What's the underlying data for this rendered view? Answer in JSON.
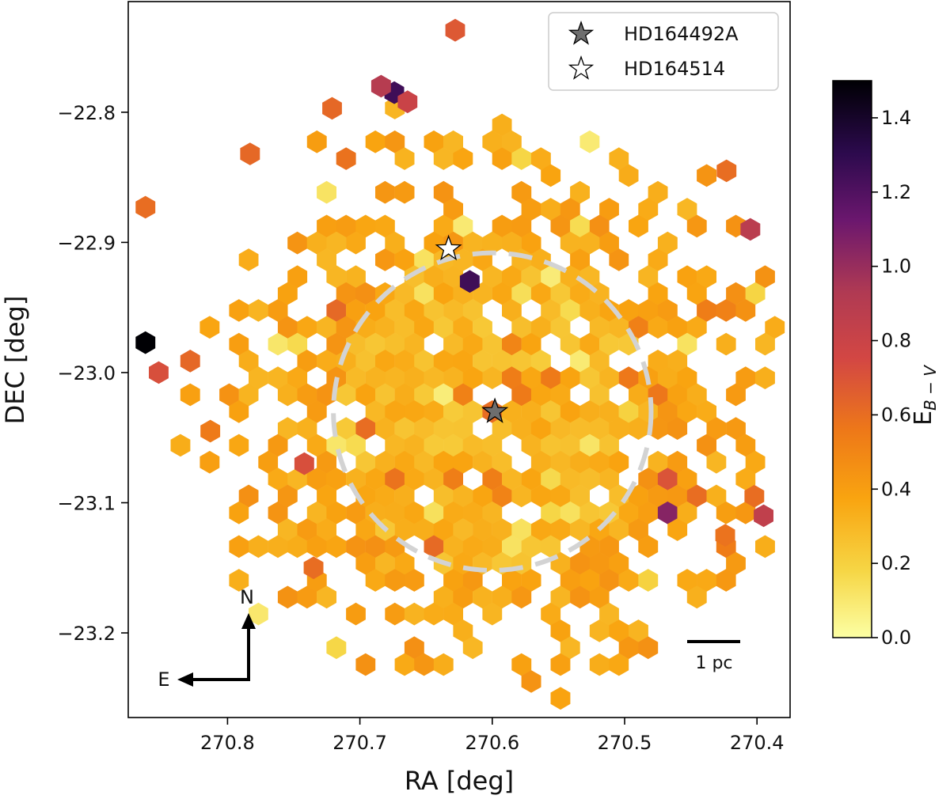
{
  "chart_data": {
    "type": "heatmap",
    "subtype": "hexbin",
    "title": "",
    "xlabel": "RA [deg]",
    "ylabel": "DEC [deg]",
    "xlim": [
      270.875,
      270.375
    ],
    "ylim": [
      -23.265,
      -22.715
    ],
    "x_inverted": true,
    "xticks": [
      270.8,
      270.7,
      270.6,
      270.5,
      270.4
    ],
    "xtick_labels": [
      "270.8",
      "270.7",
      "270.6",
      "270.5",
      "270.4"
    ],
    "yticks": [
      -22.8,
      -22.9,
      -23.0,
      -23.1,
      -23.2
    ],
    "ytick_labels": [
      "−22.8",
      "−22.9",
      "−23.0",
      "−23.1",
      "−23.2"
    ],
    "colorbar": {
      "label_main": "E",
      "label_sub": "B − V",
      "range": [
        0.0,
        1.5
      ],
      "ticks": [
        0.0,
        0.2,
        0.4,
        0.6,
        0.8,
        1.0,
        1.2,
        1.4
      ],
      "tick_labels": [
        "0.0",
        "0.2",
        "0.4",
        "0.6",
        "0.8",
        "1.0",
        "1.2",
        "1.4"
      ],
      "colormap": "inferno_r"
    },
    "cluster_center": {
      "ra": 270.6,
      "dec": -23.03
    },
    "circle": {
      "center_ra": 270.6,
      "center_dec": -23.03,
      "radius_deg": 0.12,
      "style": "dashed",
      "color": "#d3d3d3"
    },
    "stars": [
      {
        "name": "HD164492A",
        "ra": 270.598,
        "dec": -23.03,
        "marker": "filled-star",
        "color": "#6e6e6e"
      },
      {
        "name": "HD164514",
        "ra": 270.633,
        "dec": -22.905,
        "marker": "open-star",
        "color": "#ffffff"
      }
    ],
    "legend": {
      "position": "top-right",
      "entries": [
        {
          "label": "HD164492A",
          "marker": "filled-star"
        },
        {
          "label": "HD164514",
          "marker": "open-star"
        }
      ]
    },
    "scale_bar": {
      "label": "1 pc"
    },
    "compass": {
      "north_label": "N",
      "east_label": "E"
    },
    "hex_bins": {
      "hex_radius_deg": 0.0085,
      "inner_region_mean_ebv": 0.3,
      "outer_region_mean_ebv": 0.38,
      "outliers": [
        {
          "ra": 270.862,
          "dec": -22.977,
          "ebv": 1.5
        },
        {
          "ra": 270.852,
          "dec": -23.0,
          "ebv": 0.72
        },
        {
          "ra": 270.862,
          "dec": -22.873,
          "ebv": 0.6
        },
        {
          "ra": 270.829,
          "dec": -22.985,
          "ebv": 0.62
        },
        {
          "ra": 270.617,
          "dec": -22.93,
          "ebv": 1.25
        },
        {
          "ra": 270.674,
          "dec": -22.785,
          "ebv": 1.25
        },
        {
          "ra": 270.684,
          "dec": -22.78,
          "ebv": 0.9
        },
        {
          "ra": 270.664,
          "dec": -22.792,
          "ebv": 0.8
        },
        {
          "ra": 270.628,
          "dec": -22.737,
          "ebv": 0.68
        },
        {
          "ra": 270.461,
          "dec": -23.115,
          "ebv": 1.05
        },
        {
          "ra": 270.395,
          "dec": -23.11,
          "ebv": 0.85
        },
        {
          "ra": 270.405,
          "dec": -22.89,
          "ebv": 0.88
        },
        {
          "ra": 270.462,
          "dec": -23.08,
          "ebv": 0.7
        },
        {
          "ra": 270.742,
          "dec": -23.07,
          "ebv": 0.72
        },
        {
          "ra": 270.783,
          "dec": -22.832,
          "ebv": 0.62
        },
        {
          "ra": 270.721,
          "dec": -22.797,
          "ebv": 0.62
        },
        {
          "ra": 270.735,
          "dec": -23.15,
          "ebv": 0.6
        },
        {
          "ra": 270.813,
          "dec": -23.045,
          "ebv": 0.55
        },
        {
          "ra": 270.423,
          "dec": -22.845,
          "ebv": 0.6
        },
        {
          "ra": 270.424,
          "dec": -23.125,
          "ebv": 0.58
        },
        {
          "ra": 270.44,
          "dec": -23.09,
          "ebv": 0.6
        },
        {
          "ra": 270.402,
          "dec": -23.095,
          "ebv": 0.6
        },
        {
          "ra": 270.595,
          "dec": -23.03,
          "ebv": 0.6
        },
        {
          "ra": 270.58,
          "dec": -23.02,
          "ebv": 0.55
        },
        {
          "ra": 270.56,
          "dec": -23.0,
          "ebv": 0.55
        }
      ]
    }
  }
}
